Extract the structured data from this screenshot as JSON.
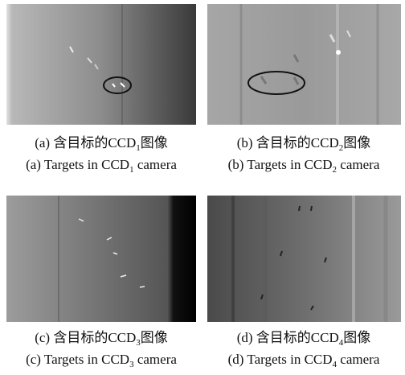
{
  "panels": [
    {
      "caption_cn": {
        "prefix": "(a) 含目标的CCD",
        "sub": "1",
        "suffix": "图像"
      },
      "caption_en": {
        "prefix": "(a) Targets in CCD",
        "sub": "1",
        "suffix": " camera"
      }
    },
    {
      "caption_cn": {
        "prefix": "(b) 含目标的CCD",
        "sub": "2",
        "suffix": "图像"
      },
      "caption_en": {
        "prefix": "(b) Targets in CCD",
        "sub": "2",
        "suffix": " camera"
      }
    },
    {
      "caption_cn": {
        "prefix": "(c) 含目标的CCD",
        "sub": "3",
        "suffix": "图像"
      },
      "caption_en": {
        "prefix": "(c) Targets in CCD",
        "sub": "3",
        "suffix": " camera"
      }
    },
    {
      "caption_cn": {
        "prefix": "(d) 含目标的CCD",
        "sub": "4",
        "suffix": "图像"
      },
      "caption_en": {
        "prefix": "(d) Targets in CCD",
        "sub": "4",
        "suffix": " camera"
      }
    }
  ]
}
